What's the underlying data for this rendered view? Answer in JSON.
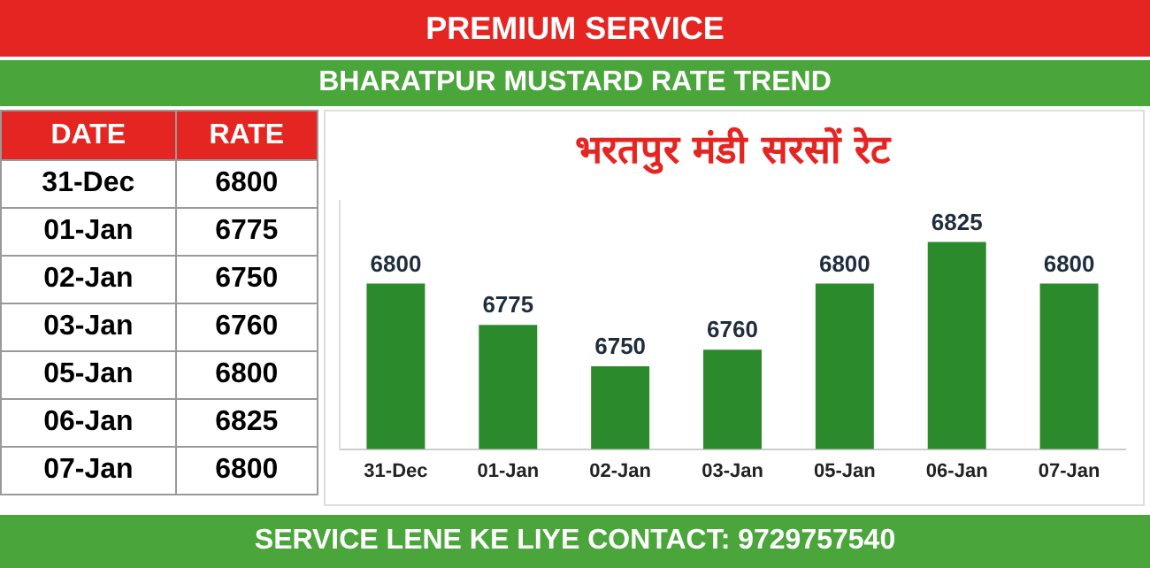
{
  "chart_data": [
    {
      "type": "other",
      "title": "PREMIUM SERVICE",
      "subtitle": "BHARATPUR MUSTARD RATE TREND",
      "annotations": [
        "DATE",
        "RATE"
      ],
      "categories": [
        "31-Dec",
        "01-Jan",
        "02-Jan",
        "03-Jan",
        "05-Jan",
        "06-Jan",
        "07-Jan"
      ],
      "values": [
        6800,
        6775,
        6750,
        6760,
        6800,
        6825,
        6800
      ],
      "value_labels": [
        "6800",
        "6775",
        "6750",
        "6760",
        "6800",
        "6825",
        "6800"
      ]
    },
    {
      "type": "bar",
      "title": "भरतपुर मंडी सरसों रेट",
      "annotations": [
        "SERVICE LENE KE LIYE CONTACT: 9729757540"
      ],
      "categories": [
        "31-Dec",
        "01-Jan",
        "02-Jan",
        "03-Jan",
        "05-Jan",
        "06-Jan",
        "07-Jan"
      ],
      "values": [
        6800,
        6775,
        6750,
        6760,
        6800,
        6825,
        6800
      ],
      "color": "#2b8a2b",
      "ylim": [
        6700,
        6850
      ],
      "tick_labels": "x",
      "data_labels": true,
      "grid": false,
      "legend": false
    }
  ]
}
